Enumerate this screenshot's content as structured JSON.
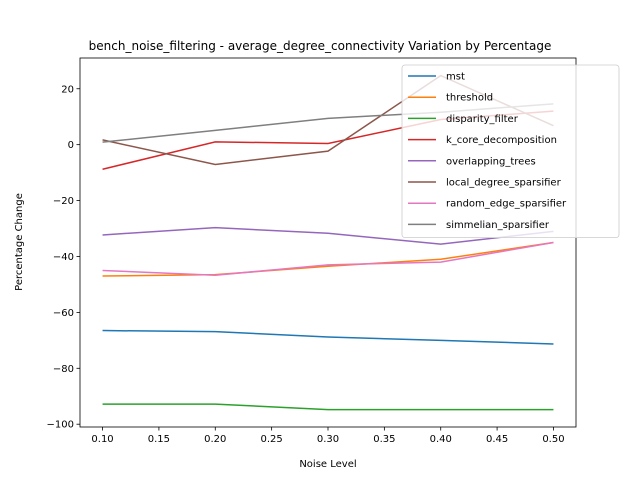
{
  "chart_data": {
    "type": "line",
    "title": "bench_noise_filtering - average_degree_connectivity Variation by Percentage",
    "xlabel": "Noise Level",
    "ylabel": "Percentage Change",
    "xlim": [
      0.08,
      0.52
    ],
    "ylim": [
      -101,
      31
    ],
    "xticks": [
      0.1,
      0.15,
      0.2,
      0.25,
      0.3,
      0.35,
      0.4,
      0.45,
      0.5
    ],
    "xtick_labels": [
      "0.10",
      "0.15",
      "0.20",
      "0.25",
      "0.30",
      "0.35",
      "0.40",
      "0.45",
      "0.50"
    ],
    "yticks": [
      -100,
      -80,
      -60,
      -40,
      -20,
      0,
      20
    ],
    "ytick_labels": [
      "−100",
      "−80",
      "−60",
      "−40",
      "−20",
      "0",
      "20"
    ],
    "grid": false,
    "legend_position": "top-right",
    "x": [
      0.1,
      0.2,
      0.3,
      0.4,
      0.5
    ],
    "series": [
      {
        "name": "mst",
        "color": "#1f77b4",
        "values": [
          -66.5,
          -66.9,
          -68.8,
          -70.0,
          -71.3
        ]
      },
      {
        "name": "threshold",
        "color": "#ff7f0e",
        "values": [
          -47.0,
          -46.5,
          -43.5,
          -41.0,
          -35.0
        ]
      },
      {
        "name": "disparity_filter",
        "color": "#2ca02c",
        "values": [
          -92.8,
          -92.8,
          -94.8,
          -94.8,
          -94.8
        ]
      },
      {
        "name": "k_core_decomposition",
        "color": "#d62728",
        "values": [
          -8.8,
          1.0,
          0.4,
          9.0,
          12.0
        ]
      },
      {
        "name": "overlapping_trees",
        "color": "#9467bd",
        "values": [
          -32.3,
          -29.7,
          -31.7,
          -35.6,
          -31.0
        ]
      },
      {
        "name": "local_degree_sparsifier",
        "color": "#8c564b",
        "values": [
          1.7,
          -7.1,
          -2.3,
          24.7,
          6.8
        ]
      },
      {
        "name": "random_edge_sparsifier",
        "color": "#e377c2",
        "values": [
          -45.0,
          -46.7,
          -43.0,
          -42.0,
          -35.0
        ]
      },
      {
        "name": "simmelian_sparsifier",
        "color": "#7f7f7f",
        "values": [
          0.9,
          5.1,
          9.4,
          11.6,
          14.6
        ]
      }
    ]
  }
}
